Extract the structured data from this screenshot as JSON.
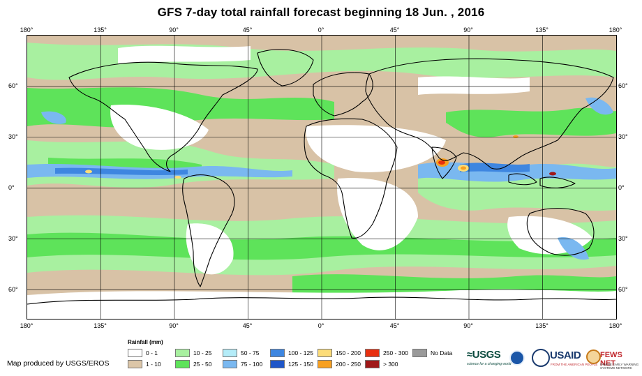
{
  "title": "GFS 7-day total rainfall forecast beginning 18 Jun. , 2016",
  "axes": {
    "lon_labels": [
      "180°",
      "135°",
      "90°",
      "45°",
      "0°",
      "45°",
      "90°",
      "135°",
      "180°"
    ],
    "lon_values": [
      -180,
      -135,
      -90,
      -45,
      0,
      45,
      90,
      135,
      180
    ],
    "lat_labels": [
      "60°",
      "30°",
      "0°",
      "30°",
      "60°"
    ],
    "lat_values": [
      60,
      30,
      0,
      -30,
      -60
    ],
    "lon_range": [
      -180,
      180
    ],
    "lat_range": [
      -77,
      90
    ]
  },
  "legend": {
    "title": "Rainfall (mm)",
    "items": [
      {
        "label": "0 - 1",
        "color": "#ffffff"
      },
      {
        "label": "1 - 10",
        "color": "#dcc6a8"
      },
      {
        "label": "10 - 25",
        "color": "#a8f0a0"
      },
      {
        "label": "25 - 50",
        "color": "#5ee35a"
      },
      {
        "label": "50 - 75",
        "color": "#b4ecf8"
      },
      {
        "label": "75 - 100",
        "color": "#7ab8f0"
      },
      {
        "label": "100 - 125",
        "color": "#3e86e0"
      },
      {
        "label": "125 - 150",
        "color": "#1f56c8"
      },
      {
        "label": "150 - 200",
        "color": "#fcdc78"
      },
      {
        "label": "200 - 250",
        "color": "#f8a020"
      },
      {
        "label": "250 - 300",
        "color": "#e83010"
      },
      {
        "label": "> 300",
        "color": "#a01818"
      },
      {
        "label": "No Data",
        "color": "#9a9a9a"
      }
    ]
  },
  "credit": "Map produced by USGS/EROS",
  "logos": {
    "usgs": "≈USGS",
    "usgs_tagline": "science for a changing world",
    "usaid": "USAID",
    "usaid_tagline": "FROM THE AMERICAN PEOPLE",
    "fews": "FEWS NET",
    "fews_tagline": "FAMINE EARLY WARNING SYSTEMS NETWORK"
  }
}
